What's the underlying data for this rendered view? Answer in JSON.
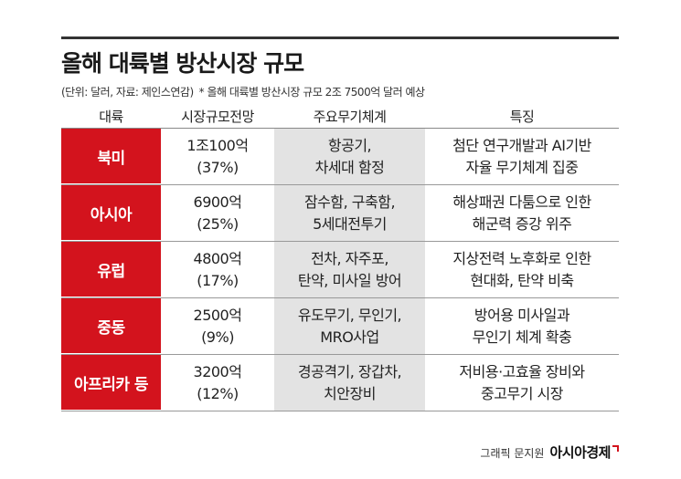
{
  "title": "올해 대륙별 방산시장 규모",
  "subtitle": {
    "unit_source": "(단위: 달러, 자료: 제인스연감)",
    "note": "* 올해 대륙별 방산시장 규모 2조 7500억 달러 예상"
  },
  "table": {
    "headers": [
      "대륙",
      "시장규모전망",
      "주요무기체계",
      "특징"
    ],
    "rows": [
      {
        "region": "북미",
        "market": [
          "1조100억",
          "(37%)"
        ],
        "weapons": [
          "항공기,",
          "차세대 함정"
        ],
        "feature": [
          "첨단 연구개발과 AI기반",
          "자율 무기체계 집중"
        ]
      },
      {
        "region": "아시아",
        "market": [
          "6900억",
          "(25%)"
        ],
        "weapons": [
          "잠수함, 구축함,",
          "5세대전투기"
        ],
        "feature": [
          "해상패권 다툼으로 인한",
          "해군력 증강 위주"
        ]
      },
      {
        "region": "유럽",
        "market": [
          "4800억",
          "(17%)"
        ],
        "weapons": [
          "전차, 자주포,",
          "탄약, 미사일 방어"
        ],
        "feature": [
          "지상전력 노후화로 인한",
          "현대화, 탄약 비축"
        ]
      },
      {
        "region": "중동",
        "market": [
          "2500억",
          "(9%)"
        ],
        "weapons": [
          "유도무기, 무인기,",
          "MRO사업"
        ],
        "feature": [
          "방어용 미사일과",
          "무인기 체계 확충"
        ]
      },
      {
        "region": "아프리카 등",
        "market": [
          "3200억",
          "(12%)"
        ],
        "weapons": [
          "경공격기, 장갑차,",
          "치안장비"
        ],
        "feature": [
          "저비용·고효율 장비와",
          "중고무기 시장"
        ]
      }
    ]
  },
  "footer": {
    "credit": "그래픽 문지원",
    "brand": "아시아경제"
  },
  "colors": {
    "accent": "#d3131d",
    "weapons_bg": "#e3e3e3"
  }
}
